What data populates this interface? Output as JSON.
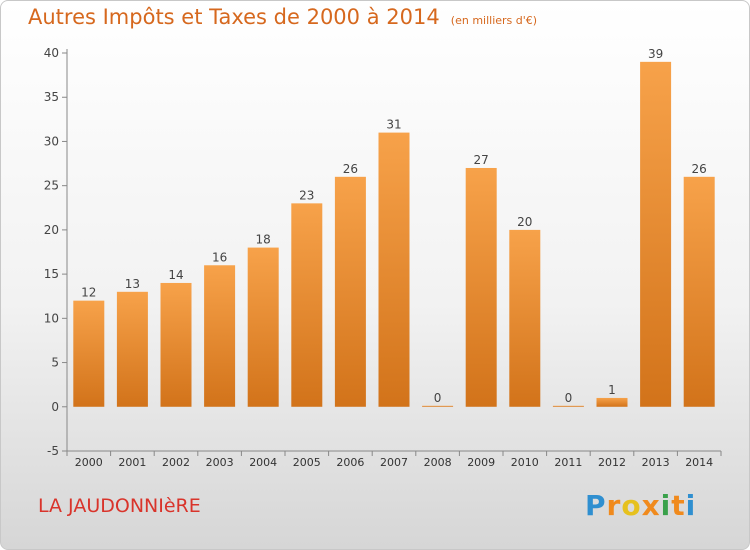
{
  "title": "Autres Impôts et Taxes de 2000 à 2014",
  "unit_note": "(en milliers d'€)",
  "commune": "LA JAUDONNIèRE",
  "brand": "Proxiti",
  "colors": {
    "bar": "#f0902a",
    "bar_dark": "#d2731a",
    "title": "#d6681e",
    "commune": "#d9342b"
  },
  "chart_data": {
    "type": "bar",
    "title": "Autres Impôts et Taxes de 2000 à 2014",
    "categories": [
      "2000",
      "2001",
      "2002",
      "2003",
      "2004",
      "2005",
      "2006",
      "2007",
      "2008",
      "2009",
      "2010",
      "2011",
      "2012",
      "2013",
      "2014"
    ],
    "values": [
      12,
      13,
      14,
      16,
      18,
      23,
      26,
      31,
      0,
      27,
      20,
      0,
      1,
      39,
      26
    ],
    "xlabel": "",
    "ylabel": "",
    "ylim": [
      -5,
      40
    ],
    "yticks": [
      -5,
      0,
      5,
      10,
      15,
      20,
      25,
      30,
      35,
      40
    ],
    "grid": false
  }
}
